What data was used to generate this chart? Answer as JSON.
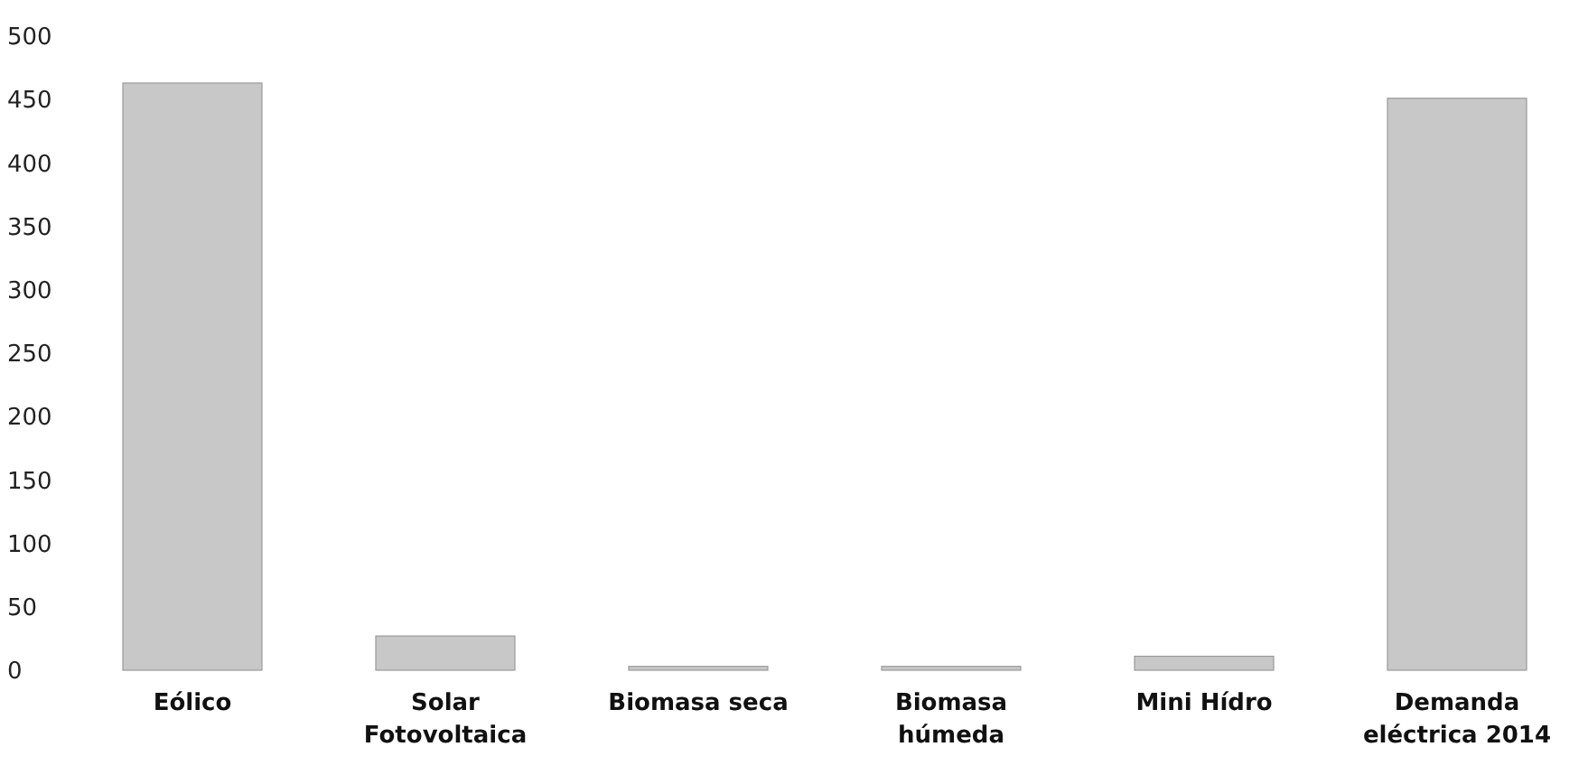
{
  "chart_data": {
    "type": "bar",
    "categories": [
      "Eólico",
      "Solar\nFotovoltaica",
      "Biomasa seca",
      "Biomasa\nhúmeda",
      "Mini Hídro",
      "Demanda\neléctrica 2014"
    ],
    "values": [
      463,
      27,
      3,
      3,
      11,
      451
    ],
    "color": "#c8c8c8",
    "ylim": [
      0,
      500
    ],
    "yticks": [
      0,
      50,
      100,
      150,
      200,
      250,
      300,
      350,
      400,
      450,
      500
    ],
    "grid": false
  }
}
